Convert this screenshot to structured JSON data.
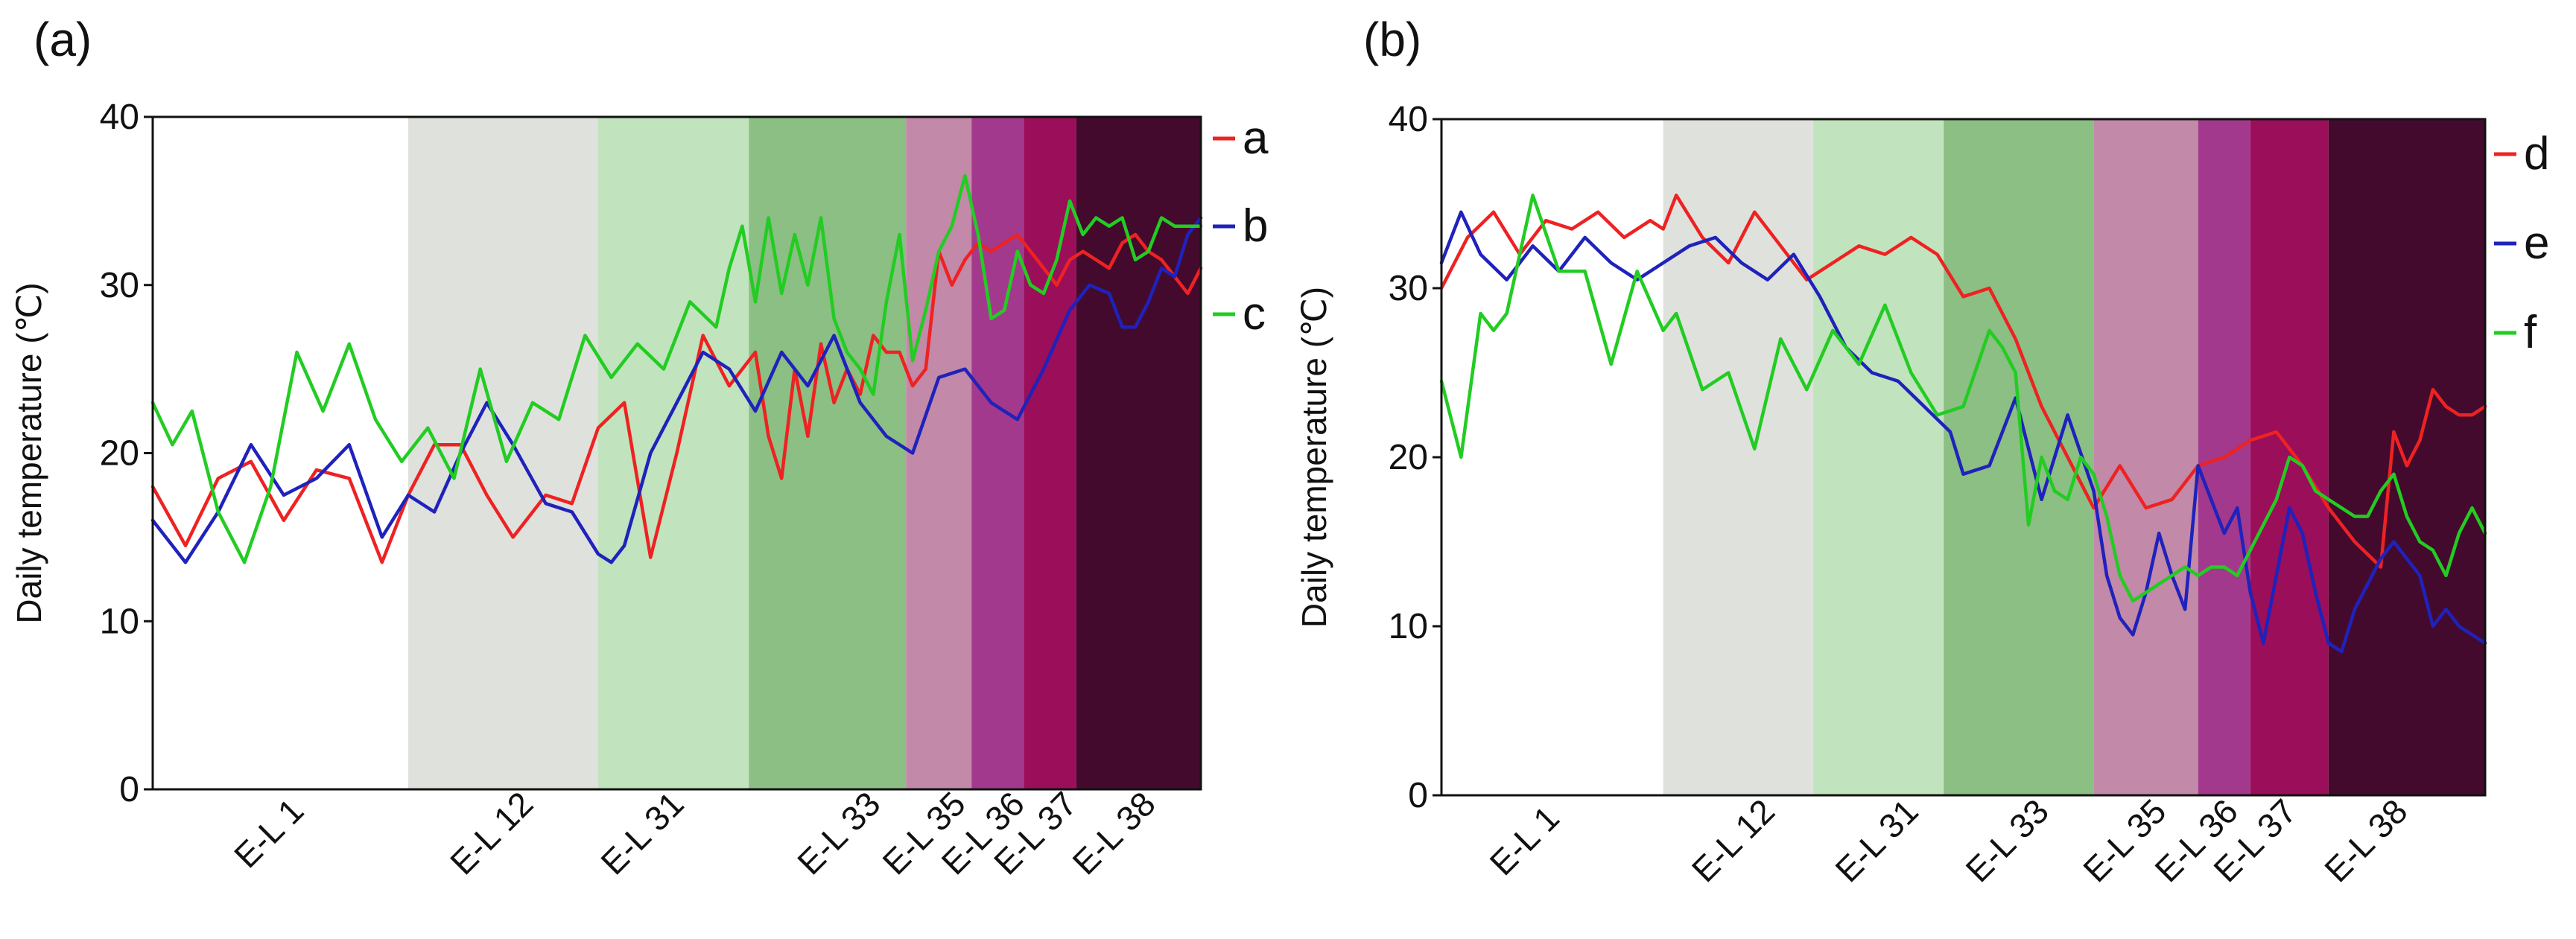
{
  "chart_data": [
    {
      "type": "line",
      "panel_label": "(a)",
      "ylabel": "Daily temperature (℃)",
      "ylim": [
        0,
        40
      ],
      "yticks": [
        0,
        10,
        20,
        30,
        40
      ],
      "xlim": [
        0,
        160
      ],
      "grid": false,
      "legend_position": "right",
      "stages": [
        {
          "name": "E-L 1",
          "start": 0,
          "end": 39,
          "color": "#ffffff",
          "label_pos": 19
        },
        {
          "name": "E-L 12",
          "start": 39,
          "end": 68,
          "color": "#dfe1dd",
          "label_pos": 53
        },
        {
          "name": "E-L 31",
          "start": 68,
          "end": 91,
          "color": "#c1e3bd",
          "label_pos": 76
        },
        {
          "name": "E-L 33",
          "start": 91,
          "end": 115,
          "color": "#8bbf83",
          "label_pos": 106
        },
        {
          "name": "E-L 35",
          "start": 115,
          "end": 125,
          "color": "#c289a8",
          "label_pos": 119
        },
        {
          "name": "E-L 36",
          "start": 125,
          "end": 133,
          "color": "#a3398c",
          "label_pos": 128
        },
        {
          "name": "E-L 37",
          "start": 133,
          "end": 141,
          "color": "#9a0e5a",
          "label_pos": 136
        },
        {
          "name": "E-L 38",
          "start": 141,
          "end": 160,
          "color": "#430a2d",
          "label_pos": 148
        }
      ],
      "series": [
        {
          "name": "a",
          "color": "#ee2222",
          "x": [
            0,
            5,
            10,
            15,
            20,
            25,
            30,
            35,
            39,
            43,
            47,
            51,
            55,
            60,
            64,
            68,
            72,
            76,
            80,
            84,
            88,
            92,
            94,
            96,
            98,
            100,
            102,
            104,
            106,
            108,
            110,
            112,
            114,
            116,
            118,
            120,
            122,
            124,
            126,
            128,
            130,
            132,
            134,
            136,
            138,
            140,
            142,
            144,
            146,
            148,
            150,
            152,
            154,
            156,
            158,
            160
          ],
          "values": [
            18,
            14.5,
            18.5,
            19.5,
            16,
            19,
            18.5,
            13.5,
            17.5,
            20.5,
            20.5,
            17.5,
            15,
            17.5,
            17,
            21.5,
            23,
            13.8,
            20,
            27,
            24,
            26,
            21,
            18.5,
            25,
            21,
            26.5,
            23,
            25,
            23.5,
            27,
            26,
            26,
            24,
            25,
            32,
            30,
            31.5,
            32.5,
            32,
            32.5,
            33,
            32,
            31,
            30,
            31.5,
            32,
            31.5,
            31,
            32.5,
            33,
            32,
            31.5,
            30.5,
            29.5,
            31
          ]
        },
        {
          "name": "b",
          "color": "#1f22bb",
          "x": [
            0,
            5,
            10,
            15,
            20,
            25,
            30,
            35,
            39,
            43,
            47,
            51,
            55,
            60,
            64,
            68,
            70,
            72,
            76,
            80,
            84,
            88,
            92,
            96,
            100,
            104,
            108,
            112,
            116,
            120,
            124,
            128,
            132,
            136,
            140,
            143,
            146,
            148,
            150,
            152,
            154,
            156,
            158,
            160
          ],
          "values": [
            16,
            13.5,
            16.5,
            20.5,
            17.5,
            18.5,
            20.5,
            15,
            17.5,
            16.5,
            20,
            23,
            20.5,
            17,
            16.5,
            14,
            13.5,
            14.5,
            20,
            23,
            26,
            25,
            22.5,
            26,
            24,
            27,
            23,
            21,
            20,
            24.5,
            25,
            23,
            22,
            25,
            28.5,
            30,
            29.5,
            27.5,
            27.5,
            29,
            31,
            30.5,
            33,
            34
          ]
        },
        {
          "name": "c",
          "color": "#22cc22",
          "x": [
            0,
            3,
            6,
            10,
            14,
            18,
            22,
            26,
            30,
            34,
            38,
            42,
            46,
            50,
            54,
            58,
            62,
            66,
            70,
            74,
            78,
            82,
            86,
            88,
            90,
            92,
            94,
            96,
            98,
            100,
            102,
            104,
            106,
            108,
            110,
            112,
            114,
            116,
            118,
            120,
            122,
            124,
            126,
            128,
            130,
            132,
            134,
            136,
            138,
            140,
            142,
            144,
            146,
            148,
            150,
            152,
            154,
            156,
            158,
            160
          ],
          "values": [
            23,
            20.5,
            22.5,
            16.5,
            13.5,
            18,
            26,
            22.5,
            26.5,
            22,
            19.5,
            21.5,
            18.5,
            25,
            19.5,
            23,
            22,
            27,
            24.5,
            26.5,
            25,
            29,
            27.5,
            31,
            33.5,
            29,
            34,
            29.5,
            33,
            30,
            34,
            28,
            26,
            25,
            23.5,
            29,
            33,
            25.5,
            28.5,
            32,
            33.5,
            36.5,
            33,
            28,
            28.5,
            32,
            30,
            29.5,
            31.5,
            35,
            33,
            34,
            33.5,
            34,
            31.5,
            32,
            34,
            33.5,
            33.5,
            33.5
          ]
        }
      ]
    },
    {
      "type": "line",
      "panel_label": "(b)",
      "ylabel": "Daily temperature (℃)",
      "ylim": [
        0,
        40
      ],
      "yticks": [
        0,
        10,
        20,
        30,
        40
      ],
      "xlim": [
        0,
        160
      ],
      "grid": false,
      "legend_position": "right",
      "stages": [
        {
          "name": "E-L 1",
          "start": 0,
          "end": 34,
          "color": "#ffffff",
          "label_pos": 14
        },
        {
          "name": "E-L 12",
          "start": 34,
          "end": 57,
          "color": "#dfe1dd",
          "label_pos": 46
        },
        {
          "name": "E-L 31",
          "start": 57,
          "end": 77,
          "color": "#c1e3bd",
          "label_pos": 68
        },
        {
          "name": "E-L 33",
          "start": 77,
          "end": 100,
          "color": "#8bbf83",
          "label_pos": 88
        },
        {
          "name": "E-L 35",
          "start": 100,
          "end": 116,
          "color": "#c289a8",
          "label_pos": 106
        },
        {
          "name": "E-L 36",
          "start": 116,
          "end": 124,
          "color": "#a3398c",
          "label_pos": 117
        },
        {
          "name": "E-L 37",
          "start": 124,
          "end": 136,
          "color": "#9a0e5a",
          "label_pos": 126
        },
        {
          "name": "E-L 38",
          "start": 136,
          "end": 160,
          "color": "#430a2d",
          "label_pos": 143
        }
      ],
      "series": [
        {
          "name": "d",
          "color": "#ee2222",
          "x": [
            0,
            4,
            8,
            12,
            16,
            20,
            24,
            28,
            32,
            34,
            36,
            40,
            44,
            48,
            52,
            56,
            60,
            64,
            68,
            72,
            76,
            80,
            84,
            88,
            92,
            96,
            100,
            104,
            108,
            112,
            116,
            120,
            124,
            128,
            132,
            136,
            140,
            144,
            146,
            148,
            150,
            152,
            154,
            156,
            158,
            160
          ],
          "values": [
            30,
            33,
            34.5,
            32,
            34,
            33.5,
            34.5,
            33,
            34,
            33.5,
            35.5,
            33,
            31.5,
            34.5,
            32.5,
            30.5,
            31.5,
            32.5,
            32,
            33,
            32,
            29.5,
            30,
            27,
            23,
            20,
            17,
            19.5,
            17,
            17.5,
            19.5,
            20,
            21,
            21.5,
            19.5,
            17,
            15,
            13.5,
            21.5,
            19.5,
            21,
            24,
            23,
            22.5,
            22.5,
            23
          ]
        },
        {
          "name": "e",
          "color": "#1f22bb",
          "x": [
            0,
            3,
            6,
            10,
            14,
            18,
            22,
            26,
            30,
            34,
            38,
            42,
            46,
            50,
            54,
            58,
            62,
            66,
            70,
            74,
            78,
            80,
            84,
            88,
            92,
            96,
            100,
            102,
            104,
            106,
            108,
            110,
            112,
            114,
            116,
            118,
            120,
            122,
            124,
            126,
            128,
            130,
            132,
            134,
            136,
            138,
            140,
            142,
            144,
            146,
            148,
            150,
            152,
            154,
            156,
            158,
            160
          ],
          "values": [
            31.5,
            34.5,
            32,
            30.5,
            32.5,
            31,
            33,
            31.5,
            30.5,
            31.5,
            32.5,
            33,
            31.5,
            30.5,
            32,
            29.5,
            26.5,
            25,
            24.5,
            23,
            21.5,
            19,
            19.5,
            23.5,
            17.5,
            22.5,
            18,
            13,
            10.5,
            9.5,
            12,
            15.5,
            13,
            11,
            19.5,
            17.5,
            15.5,
            17,
            12,
            9,
            13,
            17,
            15.5,
            12,
            9,
            8.5,
            11,
            12.5,
            14,
            15,
            14,
            13,
            10,
            11,
            10,
            9.5,
            9
          ]
        },
        {
          "name": "f",
          "color": "#22cc22",
          "x": [
            0,
            3,
            6,
            8,
            10,
            14,
            18,
            22,
            26,
            30,
            34,
            36,
            40,
            44,
            48,
            52,
            56,
            60,
            64,
            68,
            72,
            76,
            80,
            84,
            86,
            88,
            90,
            92,
            94,
            96,
            98,
            100,
            102,
            104,
            106,
            108,
            110,
            112,
            114,
            116,
            118,
            120,
            122,
            124,
            126,
            128,
            130,
            132,
            134,
            136,
            138,
            140,
            142,
            144,
            146,
            148,
            150,
            152,
            154,
            156,
            158,
            160
          ],
          "values": [
            24.5,
            20,
            28.5,
            27.5,
            28.5,
            35.5,
            31,
            31,
            25.5,
            31,
            27.5,
            28.5,
            24,
            25,
            20.5,
            27,
            24,
            27.5,
            25.5,
            29,
            25,
            22.5,
            23,
            27.5,
            26.5,
            25,
            16,
            20,
            18,
            17.5,
            20,
            19,
            16.5,
            13,
            11.5,
            12,
            12.5,
            13,
            13.5,
            13,
            13.5,
            13.5,
            13,
            14.5,
            16,
            17.5,
            20,
            19.5,
            18,
            17.5,
            17,
            16.5,
            16.5,
            18,
            19,
            16.5,
            15,
            14.5,
            13,
            15.5,
            17,
            15.5
          ]
        }
      ]
    }
  ]
}
